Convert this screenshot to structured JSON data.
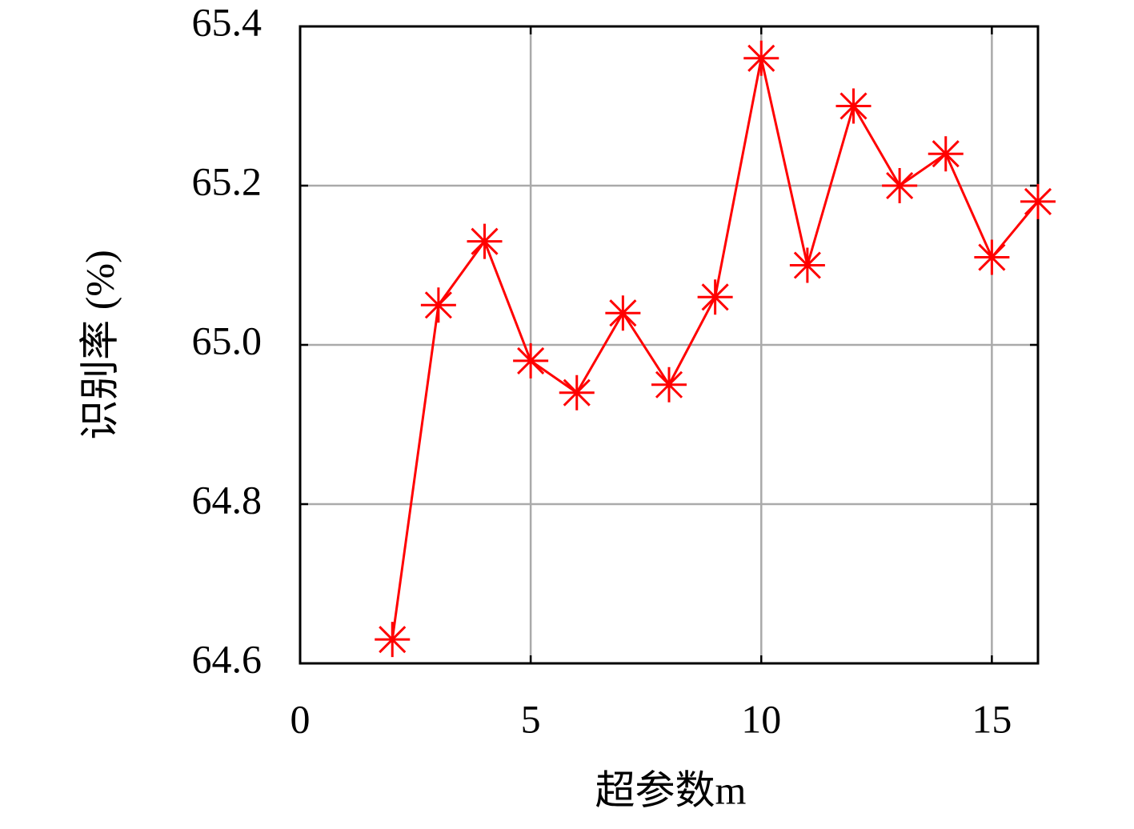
{
  "chart_data": {
    "type": "line",
    "x": [
      2,
      3,
      4,
      5,
      6,
      7,
      8,
      9,
      10,
      11,
      12,
      13,
      14,
      15,
      16
    ],
    "values": [
      64.63,
      65.05,
      65.13,
      64.98,
      64.94,
      65.04,
      64.95,
      65.06,
      65.36,
      65.1,
      65.3,
      65.2,
      65.24,
      65.11,
      65.18
    ],
    "color": "#ff0000",
    "xlabel": "超参数m",
    "ylabel": "识别率 (%)",
    "xlim": [
      0,
      16
    ],
    "ylim": [
      64.6,
      65.4
    ],
    "xticks": [
      0,
      5,
      10,
      15
    ],
    "yticks": [
      {
        "value": 64.6,
        "label": "64.6"
      },
      {
        "value": 64.8,
        "label": "64.8"
      },
      {
        "value": 65,
        "label": "65.0"
      },
      {
        "value": 65.2,
        "label": "65.2"
      },
      {
        "value": 65.4,
        "label": "65.4"
      }
    ],
    "grid": true
  }
}
